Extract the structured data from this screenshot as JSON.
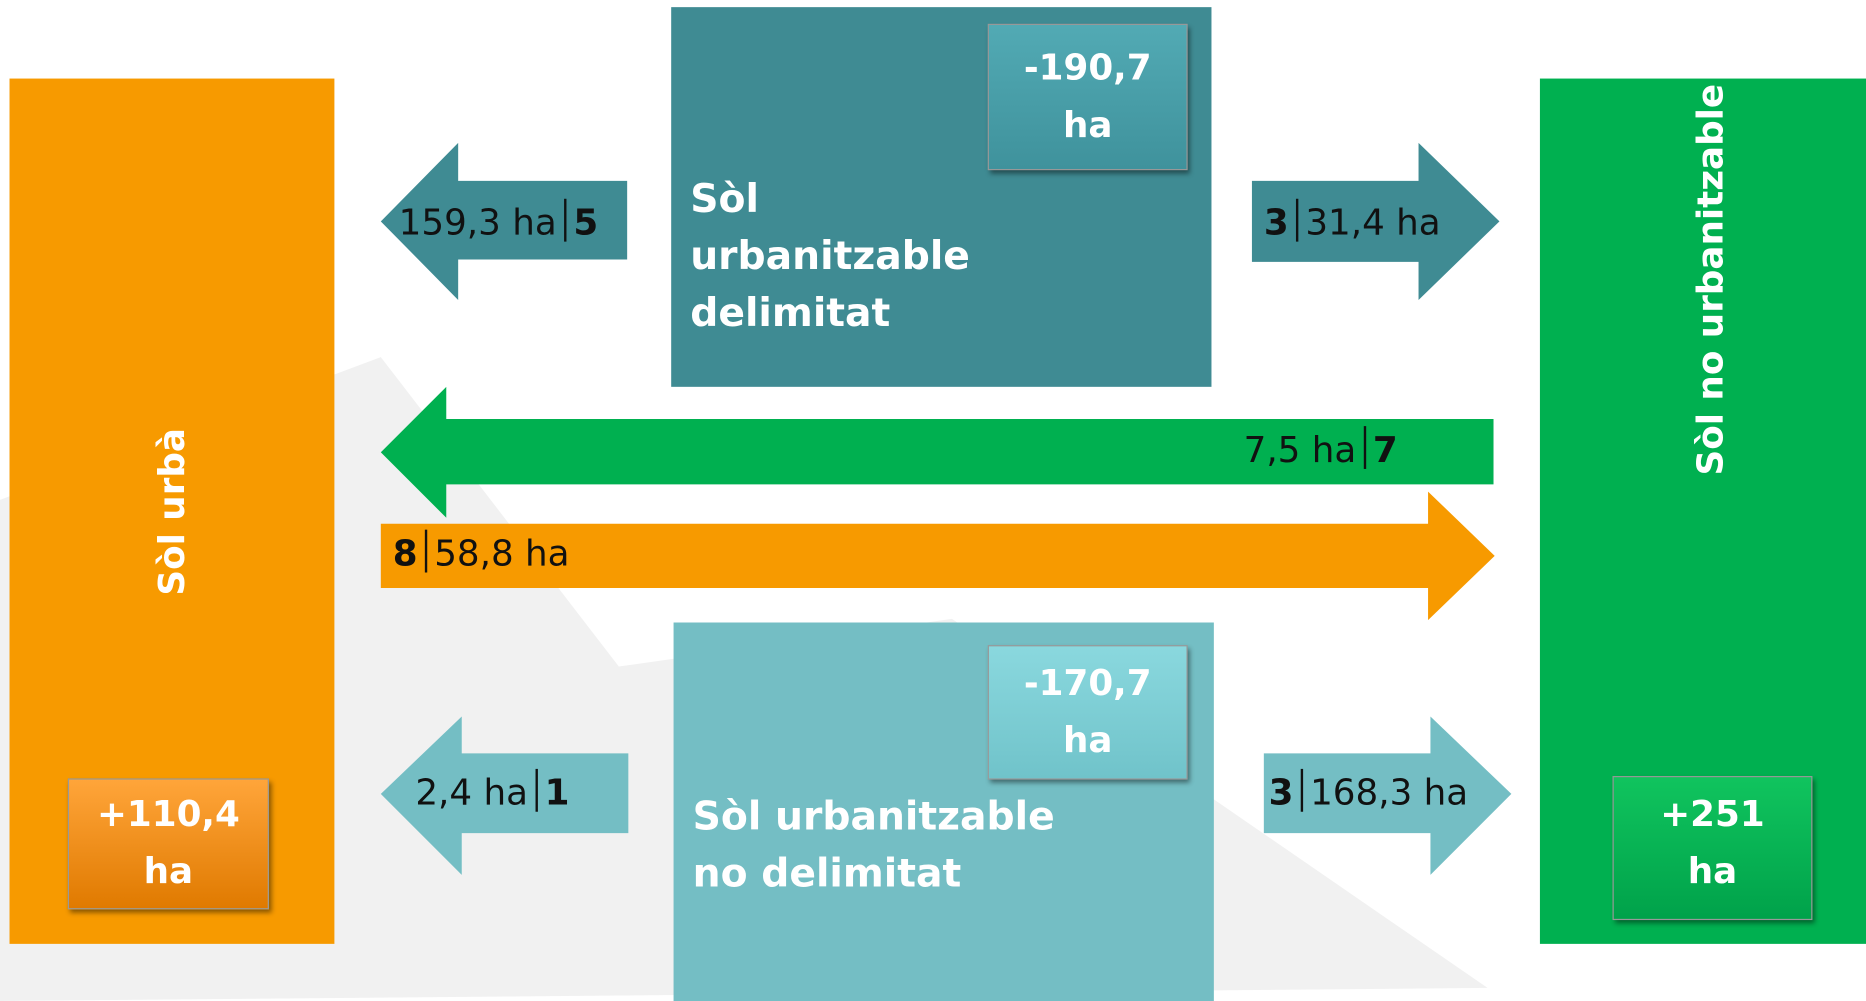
{
  "nodes": [
    {
      "label": "Sòl urbà",
      "change": "+110,4 ha"
    },
    {
      "label": "Sòl urbanitzable delimitat",
      "change": "-190,7 ha"
    },
    {
      "label": "Sòl urbanitzable no delimitat",
      "change": "-170,7 ha"
    },
    {
      "label": "Sòl no urbanitzable",
      "change": "+251 ha"
    }
  ],
  "flows": [
    {
      "area": "159,3 ha",
      "count": 5
    },
    {
      "count": 3,
      "area": "31,4 ha"
    },
    {
      "area": "7,5 ha",
      "count": 7
    },
    {
      "count": 8,
      "area": "58,8 ha"
    },
    {
      "area": "2,4 ha",
      "count": 1
    },
    {
      "count": 3,
      "area": "168,3 ha"
    }
  ]
}
